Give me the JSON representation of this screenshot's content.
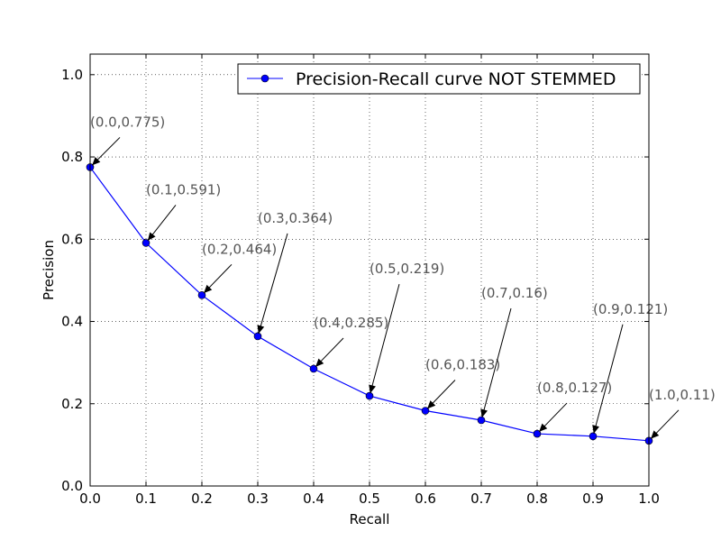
{
  "chart_data": {
    "type": "line",
    "title": "",
    "xlabel": "Recall",
    "ylabel": "Precision",
    "xlim": [
      0.0,
      1.0
    ],
    "ylim": [
      0.0,
      1.05
    ],
    "x_ticks": [
      "0.0",
      "0.1",
      "0.2",
      "0.3",
      "0.4",
      "0.5",
      "0.6",
      "0.7",
      "0.8",
      "0.9",
      "1.0"
    ],
    "y_ticks": [
      "0.0",
      "0.2",
      "0.4",
      "0.6",
      "0.8",
      "1.0"
    ],
    "grid": true,
    "legend_position": "top-right",
    "series": [
      {
        "name": "Precision-Recall curve NOT STEMMED",
        "color": "#0000ff",
        "marker": "circle",
        "x": [
          0.0,
          0.1,
          0.2,
          0.3,
          0.4,
          0.5,
          0.6,
          0.7,
          0.8,
          0.9,
          1.0
        ],
        "y": [
          0.775,
          0.591,
          0.464,
          0.364,
          0.285,
          0.219,
          0.183,
          0.16,
          0.127,
          0.121,
          0.11
        ]
      }
    ],
    "annotations": [
      {
        "text": "(0.0,0.775)",
        "x": 0.0,
        "y": 0.775
      },
      {
        "text": "(0.1,0.591)",
        "x": 0.1,
        "y": 0.591
      },
      {
        "text": "(0.2,0.464)",
        "x": 0.2,
        "y": 0.464
      },
      {
        "text": "(0.3,0.364)",
        "x": 0.3,
        "y": 0.364
      },
      {
        "text": "(0.4,0.285)",
        "x": 0.4,
        "y": 0.285
      },
      {
        "text": "(0.5,0.219)",
        "x": 0.5,
        "y": 0.219
      },
      {
        "text": "(0.6,0.183)",
        "x": 0.6,
        "y": 0.183
      },
      {
        "text": "(0.7,0.16)",
        "x": 0.7,
        "y": 0.16
      },
      {
        "text": "(0.8,0.127)",
        "x": 0.8,
        "y": 0.127
      },
      {
        "text": "(0.9,0.121)",
        "x": 0.9,
        "y": 0.121
      },
      {
        "text": "(1.0,0.11)",
        "x": 1.0,
        "y": 0.11
      }
    ]
  }
}
